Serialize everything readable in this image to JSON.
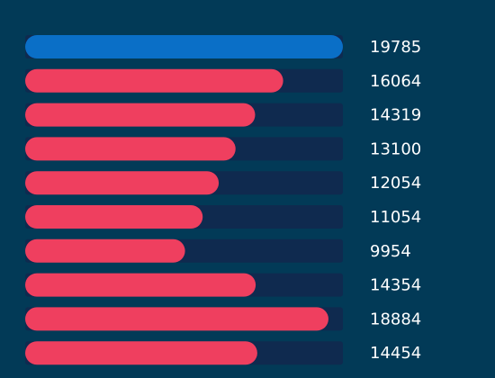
{
  "chart_data": {
    "type": "bar",
    "orientation": "horizontal",
    "values": [
      19785,
      16064,
      14319,
      13100,
      12054,
      11054,
      9954,
      14354,
      18884,
      14454
    ],
    "colors": [
      "#0a6fc7",
      "#ef3f5f",
      "#ef3f5f",
      "#ef3f5f",
      "#ef3f5f",
      "#ef3f5f",
      "#ef3f5f",
      "#ef3f5f",
      "#ef3f5f",
      "#ef3f5f"
    ],
    "track_color": "#0f2a4f",
    "xlim": [
      0,
      19785
    ]
  }
}
